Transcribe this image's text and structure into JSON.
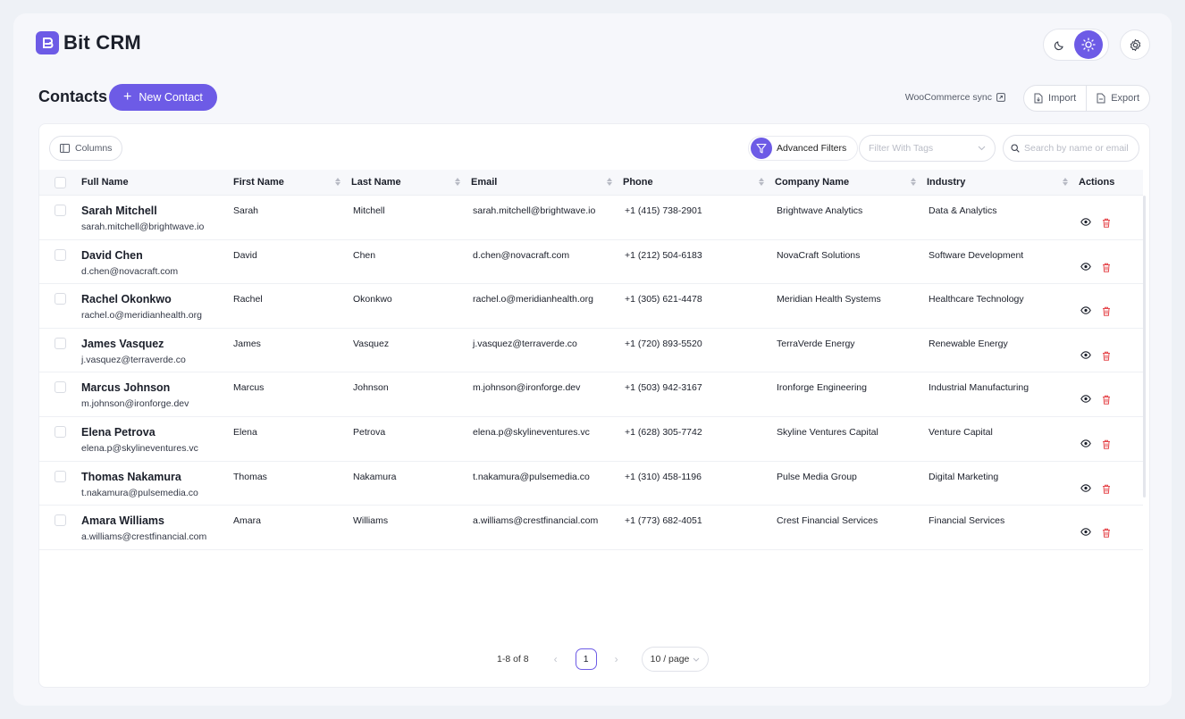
{
  "brand": {
    "name": "Bit CRM",
    "accent": "#6d5be6"
  },
  "header": {
    "theme_options": [
      "dark-mode-icon",
      "light-mode-icon"
    ],
    "active_theme": "light"
  },
  "toolbar": {
    "title": "Contacts",
    "new_contact_label": "New Contact",
    "woo_sync_label": "WooCommerce sync",
    "import_label": "Import",
    "export_label": "Export"
  },
  "filters": {
    "columns_label": "Columns",
    "advanced_filters_label": "Advanced Filters",
    "tags_placeholder": "Filter With Tags",
    "search_placeholder": "Search by name or email"
  },
  "table": {
    "columns": [
      "Full Name",
      "First Name",
      "Last Name",
      "Email",
      "Phone",
      "Company Name",
      "Industry",
      "Actions"
    ],
    "rows": [
      {
        "full_name": "Sarah Mitchell",
        "email_sub": "sarah.mitchell@brightwave.io",
        "first": "Sarah",
        "last": "Mitchell",
        "email": "sarah.mitchell@brightwave.io",
        "phone": "+1 (415) 738-2901",
        "company": "Brightwave Analytics",
        "industry": "Data & Analytics"
      },
      {
        "full_name": "David Chen",
        "email_sub": "d.chen@novacraft.com",
        "first": "David",
        "last": "Chen",
        "email": "d.chen@novacraft.com",
        "phone": "+1 (212) 504-6183",
        "company": "NovaCraft Solutions",
        "industry": "Software Development"
      },
      {
        "full_name": "Rachel Okonkwo",
        "email_sub": "rachel.o@meridianhealth.org",
        "first": "Rachel",
        "last": "Okonkwo",
        "email": "rachel.o@meridianhealth.org",
        "phone": "+1 (305) 621-4478",
        "company": "Meridian Health Systems",
        "industry": "Healthcare Technology"
      },
      {
        "full_name": "James Vasquez",
        "email_sub": "j.vasquez@terraverde.co",
        "first": "James",
        "last": "Vasquez",
        "email": "j.vasquez@terraverde.co",
        "phone": "+1 (720) 893-5520",
        "company": "TerraVerde Energy",
        "industry": "Renewable Energy"
      },
      {
        "full_name": "Marcus Johnson",
        "email_sub": "m.johnson@ironforge.dev",
        "first": "Marcus",
        "last": "Johnson",
        "email": "m.johnson@ironforge.dev",
        "phone": "+1 (503) 942-3167",
        "company": "Ironforge Engineering",
        "industry": "Industrial Manufacturing"
      },
      {
        "full_name": "Elena Petrova",
        "email_sub": "elena.p@skylineventures.vc",
        "first": "Elena",
        "last": "Petrova",
        "email": "elena.p@skylineventures.vc",
        "phone": "+1 (628) 305-7742",
        "company": "Skyline Ventures Capital",
        "industry": "Venture Capital"
      },
      {
        "full_name": "Thomas Nakamura",
        "email_sub": "t.nakamura@pulsemedia.co",
        "first": "Thomas",
        "last": "Nakamura",
        "email": "t.nakamura@pulsemedia.co",
        "phone": "+1 (310) 458-1196",
        "company": "Pulse Media Group",
        "industry": "Digital Marketing"
      },
      {
        "full_name": "Amara Williams",
        "email_sub": "a.williams@crestfinancial.com",
        "first": "Amara",
        "last": "Williams",
        "email": "a.williams@crestfinancial.com",
        "phone": "+1 (773) 682-4051",
        "company": "Crest Financial Services",
        "industry": "Financial Services"
      }
    ]
  },
  "pagination": {
    "range": "1-8 of 8",
    "current_page": "1",
    "page_size": "10 / page"
  }
}
